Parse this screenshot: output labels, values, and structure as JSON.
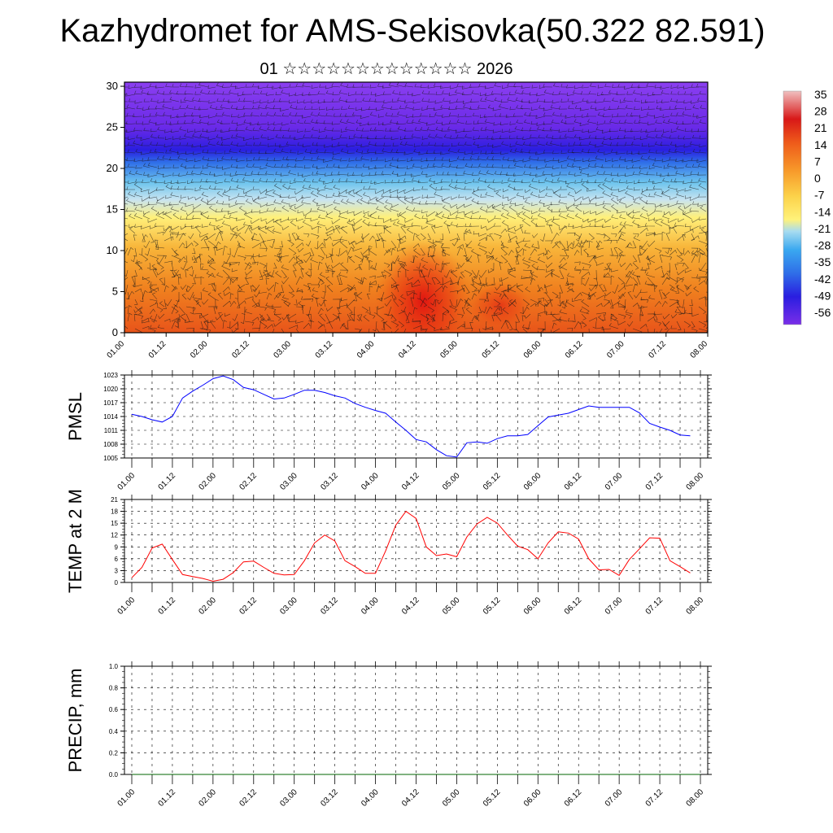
{
  "title": "Kazhydromet for AMS-Sekisovka(50.322 82.591)",
  "subtitle": "01 ☆☆☆☆☆☆☆☆☆☆☆☆☆ 2026",
  "colors": {
    "pmsl_line": "#0000ff",
    "temp_line": "#ff0000",
    "precip_line": "#006400"
  },
  "chart_data": [
    {
      "type": "heatmap",
      "title": "",
      "xlabel": "",
      "ylabel": "",
      "x_tick_labels": [
        "01.00",
        "01.12",
        "02.00",
        "02.12",
        "03.00",
        "03.12",
        "04.00",
        "04.12",
        "05.00",
        "05.12",
        "06.00",
        "06.12",
        "07.00",
        "07.12",
        "08.00"
      ],
      "y_ticks": [
        0,
        5,
        10,
        15,
        20,
        25,
        30
      ],
      "ylim": [
        0,
        30.5
      ],
      "colorbar_labels": [
        "35",
        "28",
        "21",
        "14",
        "7",
        "0",
        "-7",
        "-14",
        "-21",
        "-28",
        "-35",
        "-42",
        "-49",
        "-56"
      ],
      "colorbar_range": [
        -63,
        35
      ],
      "overlay": "wind barbs"
    },
    {
      "type": "line",
      "ylabel": "PMSL",
      "x_tick_labels": [
        "01.00",
        "01.12",
        "02.00",
        "02.12",
        "03.00",
        "03.12",
        "04.00",
        "04.12",
        "05.00",
        "05.12",
        "06.00",
        "06.12",
        "07.00",
        "07.12",
        "08.00"
      ],
      "y_tick_labels": [
        "1023",
        "1020",
        "1017",
        "1014",
        "1011",
        "1008",
        "1005"
      ],
      "ylim": [
        1005,
        1023
      ],
      "grid": true,
      "x": [
        0,
        3,
        6,
        9,
        12,
        15,
        18,
        21,
        24,
        27,
        30,
        33,
        36,
        39,
        42,
        45,
        48,
        51,
        54,
        57,
        60,
        63,
        66,
        69,
        72,
        75,
        78,
        81,
        84,
        87,
        90,
        93,
        96,
        99,
        102,
        105,
        108,
        111,
        114,
        117,
        120,
        123,
        126,
        129,
        132,
        135,
        138,
        141,
        144,
        147,
        150,
        153,
        156,
        159,
        162,
        165
      ],
      "values": [
        1014.5,
        1014.0,
        1013.3,
        1012.8,
        1014.0,
        1018.0,
        1019.5,
        1020.8,
        1022.2,
        1022.8,
        1022.0,
        1020.3,
        1019.8,
        1018.8,
        1017.8,
        1018.0,
        1018.8,
        1019.7,
        1019.7,
        1019.2,
        1018.5,
        1018.0,
        1016.8,
        1016.0,
        1015.3,
        1014.7,
        1012.8,
        1011.0,
        1009.0,
        1008.5,
        1006.8,
        1005.5,
        1005.2,
        1008.3,
        1008.5,
        1008.2,
        1009.2,
        1009.8,
        1009.8,
        1010.1,
        1012.0,
        1013.9,
        1014.3,
        1014.7,
        1015.5,
        1016.3,
        1016.0,
        1016.0,
        1016.0,
        1016.0,
        1014.8,
        1012.5,
        1011.7,
        1011.0,
        1010.0,
        1009.8
      ]
    },
    {
      "type": "line",
      "ylabel": "TEMP at 2 M",
      "x_tick_labels": [
        "01.00",
        "01.12",
        "02.00",
        "02.12",
        "03.00",
        "03.12",
        "04.00",
        "04.12",
        "05.00",
        "05.12",
        "06.00",
        "06.12",
        "07.00",
        "07.12",
        "08.00"
      ],
      "y_tick_labels": [
        "21",
        "18",
        "15",
        "12",
        "9",
        "6",
        "3",
        "0"
      ],
      "ylim": [
        0,
        21
      ],
      "grid": true,
      "x": [
        0,
        3,
        6,
        9,
        12,
        15,
        18,
        21,
        24,
        27,
        30,
        33,
        36,
        39,
        42,
        45,
        48,
        51,
        54,
        57,
        60,
        63,
        66,
        69,
        72,
        75,
        78,
        81,
        84,
        87,
        90,
        93,
        96,
        99,
        102,
        105,
        108,
        111,
        114,
        117,
        120,
        123,
        126,
        129,
        132,
        135,
        138,
        141,
        144,
        147,
        150,
        153,
        156,
        159,
        162,
        165
      ],
      "values": [
        1.2,
        3.8,
        8.7,
        9.7,
        5.8,
        2.0,
        1.5,
        1.0,
        0.3,
        0.8,
        2.5,
        5.2,
        5.4,
        3.8,
        2.3,
        1.9,
        2.0,
        5.5,
        10.0,
        12.0,
        10.5,
        5.5,
        4.0,
        2.3,
        2.3,
        8.0,
        14.5,
        18.0,
        16.2,
        9.0,
        6.8,
        7.2,
        6.5,
        11.5,
        14.8,
        16.5,
        15.0,
        12.0,
        9.2,
        8.3,
        6.0,
        10.0,
        12.8,
        12.5,
        11.0,
        6.0,
        3.2,
        3.3,
        1.8,
        5.8,
        8.5,
        11.3,
        11.2,
        5.5,
        4.0,
        2.4
      ]
    },
    {
      "type": "line",
      "ylabel": "PRECIP, mm",
      "x_tick_labels": [
        "01.00",
        "01.12",
        "02.00",
        "02.12",
        "03.00",
        "03.12",
        "04.00",
        "04.12",
        "05.00",
        "05.12",
        "06.00",
        "06.12",
        "07.00",
        "07.12",
        "08.00"
      ],
      "y_tick_labels": [
        "1.0",
        "0.8",
        "0.6",
        "0.4",
        "0.2",
        "0.0"
      ],
      "ylim": [
        0,
        1
      ],
      "grid": true,
      "x": [
        0,
        168
      ],
      "values": [
        0,
        0
      ]
    }
  ]
}
